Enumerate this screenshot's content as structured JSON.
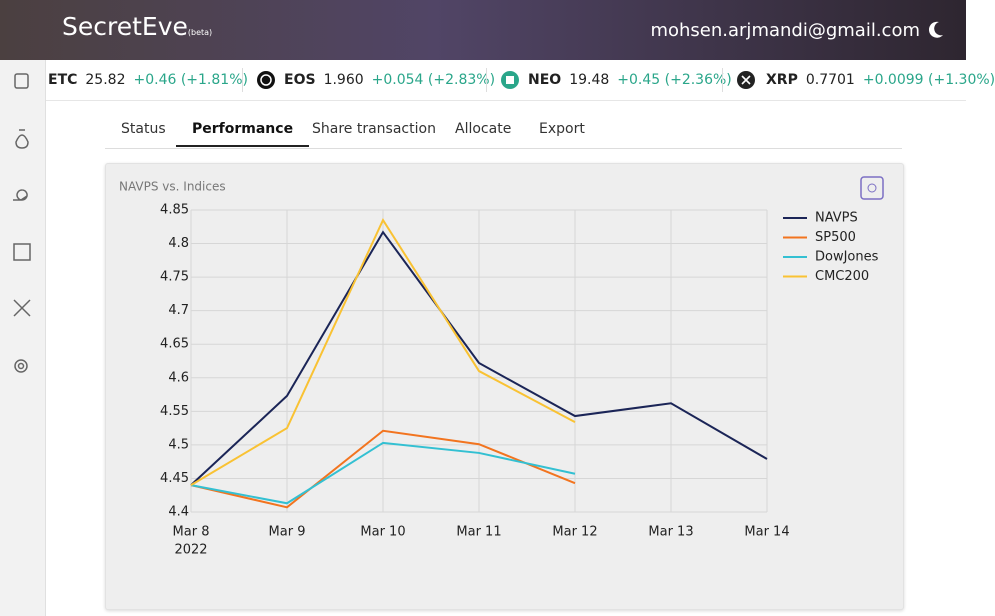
{
  "header": {
    "brand": "SecretEve",
    "brand_tag": "(beta)",
    "user_email": "mohsen.arjmandi@gmail.com"
  },
  "ticker": [
    {
      "symbol": "ETC",
      "price": "25.82",
      "change": "+0.46 (+1.81%)"
    },
    {
      "symbol": "EOS",
      "price": "1.960",
      "change": "+0.054 (+2.83%)"
    },
    {
      "symbol": "NEO",
      "price": "19.48",
      "change": "+0.45 (+2.36%)"
    },
    {
      "symbol": "XRP",
      "price": "0.7701",
      "change": "+0.0099 (+1.30%)"
    }
  ],
  "tabs": [
    "Status",
    "Performance",
    "Share transaction",
    "Allocate",
    "Export"
  ],
  "active_tab": 1,
  "chart_data": {
    "type": "line",
    "title": "NAVPS vs. Indices",
    "categories": [
      "Mar 8",
      "Mar 9",
      "Mar 10",
      "Mar 11",
      "Mar 12",
      "Mar 13",
      "Mar 14"
    ],
    "year": "2022",
    "series": [
      {
        "name": "NAVPS",
        "color": "#1b2557",
        "values": [
          4.44,
          4.573,
          4.817,
          4.622,
          4.543,
          4.562,
          4.479
        ]
      },
      {
        "name": "SP500",
        "color": "#f2741f",
        "values": [
          4.44,
          4.407,
          4.521,
          4.501,
          4.443,
          null,
          null
        ]
      },
      {
        "name": "DowJones",
        "color": "#33c0d2",
        "values": [
          4.44,
          4.413,
          4.503,
          4.488,
          4.457,
          null,
          null
        ]
      },
      {
        "name": "CMC200",
        "color": "#f9c233",
        "values": [
          4.44,
          4.525,
          4.835,
          4.61,
          4.534,
          null,
          null
        ]
      }
    ],
    "ylim": [
      4.4,
      4.85
    ],
    "yticks": [
      4.4,
      4.45,
      4.5,
      4.55,
      4.6,
      4.65,
      4.7,
      4.75,
      4.8,
      4.85
    ],
    "grid": true,
    "legend": "right"
  }
}
